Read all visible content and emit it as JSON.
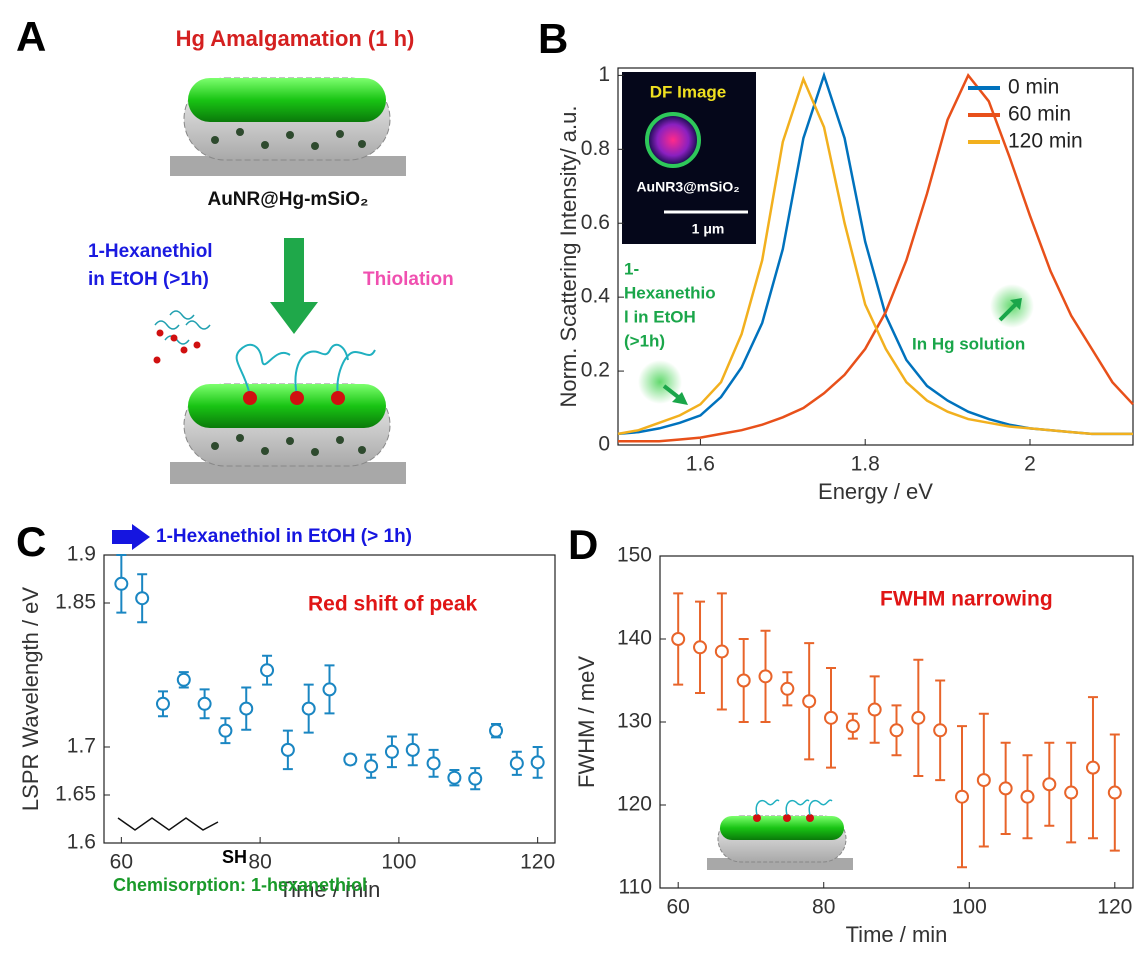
{
  "panel_a": {
    "panel": "A",
    "title": "Hg Amalgamation (1 h)",
    "product": "AuNR@Hg-mSiO₂",
    "reagent_lines": [
      "1-Hexanethiol",
      "in EtOH (>1h)"
    ],
    "step": "Thiolation"
  },
  "chart_data": [
    {
      "panel": "B",
      "type": "line",
      "xlabel": "Energy / eV",
      "ylabel": "Norm. Scattering Intensity/ a.u.",
      "xlim": [
        1.5,
        2.125
      ],
      "ylim": [
        0,
        1.02
      ],
      "xticks": [
        1.6,
        1.8,
        2
      ],
      "yticks": [
        0,
        0.2,
        0.4,
        0.6,
        0.8,
        1
      ],
      "legend": "upper right",
      "x": [
        1.5,
        1.525,
        1.55,
        1.575,
        1.6,
        1.625,
        1.65,
        1.675,
        1.7,
        1.725,
        1.75,
        1.775,
        1.8,
        1.825,
        1.85,
        1.875,
        1.9,
        1.925,
        1.95,
        1.975,
        2.0,
        2.025,
        2.05,
        2.075,
        2.1,
        2.125
      ],
      "series": [
        {
          "name": "0 min",
          "color": "#0072bd",
          "values": [
            0.03,
            0.035,
            0.045,
            0.06,
            0.08,
            0.13,
            0.21,
            0.33,
            0.53,
            0.83,
            1,
            0.83,
            0.55,
            0.35,
            0.23,
            0.16,
            0.12,
            0.09,
            0.07,
            0.055,
            0.045,
            0.04,
            0.035,
            0.03,
            0.03,
            0.03
          ]
        },
        {
          "name": "60 min",
          "color": "#e8501a",
          "values": [
            0.01,
            0.01,
            0.01,
            0.015,
            0.02,
            0.03,
            0.04,
            0.055,
            0.075,
            0.1,
            0.14,
            0.19,
            0.26,
            0.36,
            0.5,
            0.68,
            0.88,
            1,
            0.93,
            0.78,
            0.62,
            0.47,
            0.35,
            0.26,
            0.17,
            0.11
          ]
        },
        {
          "name": "120 min",
          "color": "#f2b01e",
          "values": [
            0.03,
            0.04,
            0.06,
            0.08,
            0.11,
            0.17,
            0.3,
            0.5,
            0.82,
            0.99,
            0.86,
            0.6,
            0.38,
            0.26,
            0.17,
            0.12,
            0.09,
            0.07,
            0.06,
            0.05,
            0.045,
            0.04,
            0.035,
            0.03,
            0.03,
            0.03
          ]
        }
      ],
      "inset": {
        "title": "DF Image",
        "label": "AuNR3@mSiO₂",
        "scale": "1 μm"
      },
      "annotations": [
        {
          "lines": [
            "1-",
            "Hexanethio",
            "l in EtOH",
            "(>1h)"
          ],
          "color": "#1aa64a"
        },
        {
          "lines": [
            "In Hg solution"
          ],
          "color": "#1aa64a"
        }
      ]
    },
    {
      "panel": "C",
      "type": "scatter",
      "xlabel": "Time / min",
      "ylabel": "LSPR Wavelength / eV",
      "color": "#1a86c2",
      "xlim": [
        57.5,
        122.5
      ],
      "ylim": [
        1.6,
        1.9
      ],
      "xticks": [
        60,
        80,
        100,
        120
      ],
      "yticks": [
        1.6,
        1.65,
        1.7,
        1.85,
        1.9
      ],
      "x": [
        60,
        63,
        66,
        69,
        72,
        75,
        78,
        81,
        84,
        87,
        90,
        93,
        96,
        99,
        102,
        105,
        108,
        111,
        114,
        117,
        120
      ],
      "values": [
        1.87,
        1.855,
        1.745,
        1.77,
        1.745,
        1.717,
        1.74,
        1.78,
        1.697,
        1.74,
        1.76,
        1.687,
        1.68,
        1.695,
        1.697,
        1.683,
        1.668,
        1.667,
        1.717,
        1.683,
        1.684
      ],
      "errors": [
        0.03,
        0.025,
        0.013,
        0.008,
        0.015,
        0.013,
        0.022,
        0.015,
        0.02,
        0.025,
        0.025,
        0.005,
        0.012,
        0.016,
        0.016,
        0.014,
        0.008,
        0.011,
        0.007,
        0.012,
        0.016
      ],
      "annotations": [
        {
          "lines": [
            "1-Hexanethiol in EtOH (> 1h)"
          ],
          "color": "#1515e0"
        },
        {
          "lines": [
            "Red shift of peak"
          ],
          "color": "#e01515"
        },
        {
          "lines": [
            "SH"
          ],
          "color": "#000000"
        },
        {
          "lines": [
            "Chemisorption: 1-hexanethiol"
          ],
          "color": "#1a9a2a"
        }
      ]
    },
    {
      "panel": "D",
      "type": "scatter",
      "xlabel": "Time / min",
      "ylabel": "FWHM / meV",
      "color": "#e8642a",
      "xlim": [
        57.5,
        122.5
      ],
      "ylim": [
        110,
        150
      ],
      "xticks": [
        60,
        80,
        100,
        120
      ],
      "yticks": [
        110,
        120,
        130,
        140,
        150
      ],
      "x": [
        60,
        63,
        66,
        69,
        72,
        75,
        78,
        81,
        84,
        87,
        90,
        93,
        96,
        99,
        102,
        105,
        108,
        111,
        114,
        117,
        120
      ],
      "values": [
        140,
        139,
        138.5,
        135,
        135.5,
        134,
        132.5,
        130.5,
        129.5,
        131.5,
        129,
        130.5,
        129,
        121,
        123,
        122,
        121,
        122.5,
        121.5,
        124.5,
        121.5
      ],
      "errors": [
        5.5,
        5.5,
        7,
        5,
        5.5,
        2,
        7,
        6,
        1.5,
        4,
        3,
        7,
        6,
        8.5,
        8,
        5.5,
        5,
        5,
        6,
        8.5,
        7
      ],
      "annotations": [
        {
          "lines": [
            "FWHM narrowing"
          ],
          "color": "#e01515"
        }
      ]
    }
  ]
}
